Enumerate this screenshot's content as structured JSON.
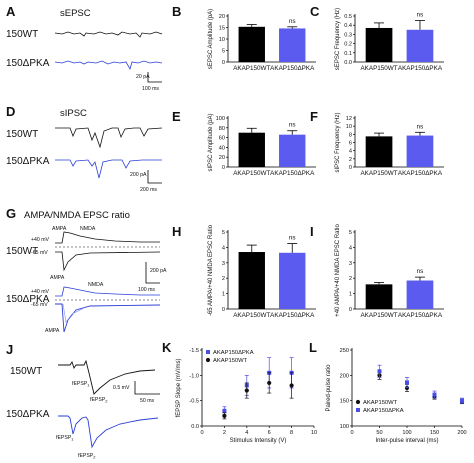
{
  "colors": {
    "wt": "#111111",
    "pka": "#4B4DE8",
    "pka_bar": "#5B5BEF",
    "trace_pka": "#2a3fd6",
    "trace_pka_light": "#8f9ff0"
  },
  "panels": {
    "A": {
      "label": "A",
      "title": "sEPSC",
      "wt": "150WT",
      "pka": "150ΔPKA",
      "scale_y": "20 pA",
      "scale_x": "100 ms"
    },
    "D": {
      "label": "D",
      "title": "sIPSC",
      "wt": "150WT",
      "pka": "150ΔPKA",
      "scale_y": "200 pA",
      "scale_x": "200 ms"
    },
    "G": {
      "label": "G",
      "title": "AMPA/NMDA EPSC ratio",
      "wt": "150WT",
      "pka": "150ΔPKA",
      "ampa": "AMPA",
      "nmda": "NMDA",
      "v_pos": "+40 mV",
      "v_neg": "-65 mV",
      "scale_y": "200 pA",
      "scale_x": "100 ms"
    },
    "J": {
      "label": "J",
      "wt": "150WT",
      "pka": "150ΔPKA",
      "fepsp1": "fEPSP",
      "fepsp2": "fEPSP",
      "sub1": "1",
      "sub2": "2",
      "scale_y": "0.5 mV",
      "scale_x": "50 ms"
    }
  },
  "chart_data": [
    {
      "id": "B",
      "label": "B",
      "type": "bar",
      "categories": [
        "AKAP150WT",
        "AKAP150ΔPKA"
      ],
      "values": [
        15.3,
        14.6
      ],
      "errors": [
        1.0,
        0.7
      ],
      "ylabel": "sEPSC Amplitude (pA)",
      "ylim": [
        0,
        20
      ],
      "yticks": [
        "0",
        "5",
        "10",
        "15",
        "20"
      ],
      "annotation": "ns"
    },
    {
      "id": "C",
      "label": "C",
      "type": "bar",
      "categories": [
        "AKAP150WT",
        "AKAP150ΔPKA"
      ],
      "values": [
        0.37,
        0.35
      ],
      "errors": [
        0.055,
        0.1
      ],
      "ylabel": "sEPSC Frequency (Hz)",
      "ylim": [
        0,
        0.5
      ],
      "yticks": [
        "0.0",
        "0.1",
        "0.2",
        "0.3",
        "0.4",
        "0.5"
      ],
      "annotation": "ns"
    },
    {
      "id": "E",
      "label": "E",
      "type": "bar",
      "categories": [
        "AKAP150WT",
        "AKAP150ΔPKA"
      ],
      "values": [
        70,
        66
      ],
      "errors": [
        9,
        8
      ],
      "ylabel": "sIPSC Amplitude (pA)",
      "ylim": [
        0,
        100
      ],
      "yticks": [
        "0",
        "20",
        "40",
        "60",
        "80",
        "100"
      ],
      "annotation": "ns"
    },
    {
      "id": "F",
      "label": "F",
      "type": "bar",
      "categories": [
        "AKAP150WT",
        "AKAP150ΔPKA"
      ],
      "values": [
        7.5,
        7.7
      ],
      "errors": [
        0.8,
        0.8
      ],
      "ylabel": "sIPSC Frequency (Hz)",
      "ylim": [
        0,
        12
      ],
      "yticks": [
        "0",
        "2",
        "4",
        "6",
        "8",
        "10",
        "12"
      ],
      "annotation": "ns"
    },
    {
      "id": "H",
      "label": "H",
      "type": "bar",
      "categories": [
        "AKAP150WT",
        "AKAP150ΔPKA"
      ],
      "values": [
        3.7,
        3.65
      ],
      "errors": [
        0.45,
        0.6
      ],
      "ylabel": "-65 AMPA/+40 NMDA EPSC Ratio",
      "ylim": [
        0,
        5
      ],
      "yticks": [
        "0",
        "1",
        "2",
        "3",
        "4",
        "5"
      ],
      "annotation": "ns"
    },
    {
      "id": "I",
      "label": "I",
      "type": "bar",
      "categories": [
        "AKAP150WT",
        "AKAP150ΔPKA"
      ],
      "values": [
        1.6,
        1.85
      ],
      "errors": [
        0.12,
        0.22
      ],
      "ylabel": "+40 AMPA/+40 NMDA EPSC Ratio",
      "ylim": [
        0,
        5
      ],
      "yticks": [
        "0",
        "1",
        "2",
        "3",
        "4",
        "5"
      ],
      "annotation": "ns"
    },
    {
      "id": "K",
      "label": "K",
      "type": "scatter",
      "xlabel": "Stimulus Intensity (V)",
      "ylabel": "fEPSP Slope (mV/ms)",
      "xlim": [
        0,
        10
      ],
      "ylim": [
        0,
        -1.5
      ],
      "xticks": [
        "0",
        "2",
        "4",
        "6",
        "8",
        "10"
      ],
      "yticks": [
        "0.0",
        "-0.5",
        "-1.0",
        "-1.5"
      ],
      "legend_position": "top-left",
      "series": [
        {
          "name": "AKAP150ΔPKA",
          "x": [
            2,
            4,
            6,
            8
          ],
          "y": [
            -0.3,
            -0.8,
            -1.05,
            -1.05
          ],
          "err": [
            0.08,
            0.2,
            0.3,
            0.3
          ]
        },
        {
          "name": "AKAP150WT",
          "x": [
            2,
            4,
            6,
            8
          ],
          "y": [
            -0.2,
            -0.7,
            -0.85,
            -0.8
          ],
          "err": [
            0.06,
            0.15,
            0.2,
            0.25
          ]
        }
      ]
    },
    {
      "id": "L",
      "label": "L",
      "type": "scatter",
      "xlabel": "Inter-pulse interval (ms)",
      "ylabel": "Paired-pulse ratio",
      "xlim": [
        0,
        200
      ],
      "ylim": [
        100,
        250
      ],
      "xticks": [
        "0",
        "50",
        "100",
        "150",
        "200"
      ],
      "yticks": [
        "100",
        "150",
        "200",
        "250"
      ],
      "legend_position": "bottom-left",
      "series": [
        {
          "name": "AKAP150WT",
          "x": [
            50,
            100,
            150,
            200
          ],
          "y": [
            200,
            175,
            158,
            148
          ],
          "err": [
            8,
            7,
            5,
            4
          ]
        },
        {
          "name": "AKAP150ΔPKA",
          "x": [
            50,
            100,
            150,
            200
          ],
          "y": [
            208,
            186,
            162,
            150
          ],
          "err": [
            12,
            10,
            7,
            5
          ]
        }
      ]
    }
  ]
}
